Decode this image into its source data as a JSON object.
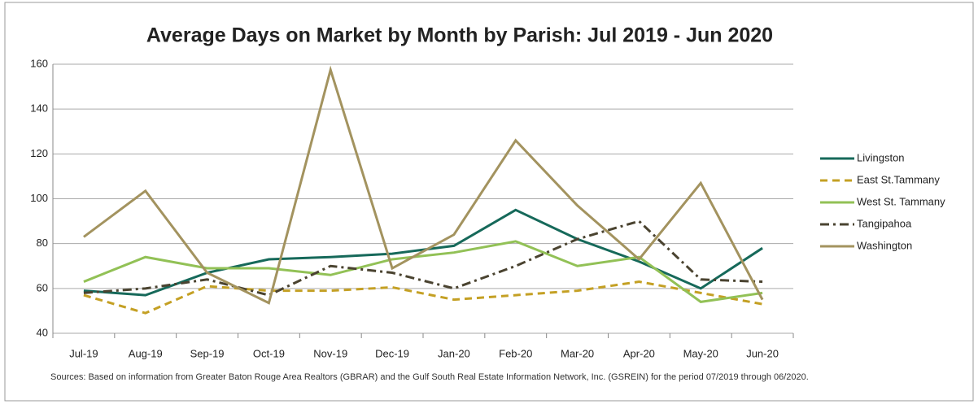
{
  "chart_data": {
    "type": "line",
    "title": "Average Days on Market by Month by Parish:  Jul 2019 - Jun 2020",
    "categories": [
      "Jul-19",
      "Aug-19",
      "Sep-19",
      "Oct-19",
      "Nov-19",
      "Dec-19",
      "Jan-20",
      "Feb-20",
      "Mar-20",
      "Apr-20",
      "May-20",
      "Jun-20"
    ],
    "series": [
      {
        "name": "Livingston",
        "color": "#16695a",
        "dash": "solid",
        "values": [
          59,
          57,
          67,
          73,
          74,
          75.5,
          79,
          95,
          82,
          72,
          60,
          78
        ]
      },
      {
        "name": "East St.Tammany",
        "color": "#c4a024",
        "dash": "dashed",
        "values": [
          57,
          49,
          61,
          59,
          59,
          60.5,
          55,
          57,
          59,
          63,
          58,
          53
        ]
      },
      {
        "name": "West St. Tammany",
        "color": "#92c156",
        "dash": "solid",
        "values": [
          63,
          74,
          69,
          69,
          66,
          73,
          76,
          81,
          70,
          74,
          54,
          58
        ]
      },
      {
        "name": "Tangipahoa",
        "color": "#4a4330",
        "dash": "dashdot",
        "values": [
          58,
          60,
          64,
          57,
          70,
          67,
          60,
          70,
          82,
          90,
          64,
          63
        ]
      },
      {
        "name": "Washington",
        "color": "#a3935f",
        "dash": "solid",
        "values": [
          83,
          103.5,
          67,
          53.5,
          157.5,
          69,
          84,
          126,
          97,
          73,
          107,
          55
        ]
      }
    ],
    "ylim": [
      40,
      160
    ],
    "yticks": [
      40,
      60,
      80,
      100,
      120,
      140,
      160
    ],
    "grid": true,
    "legend": "right",
    "source": "Sources: Based on information from Greater Baton Rouge Area Realtors (GBRAR) and the Gulf South Real Estate Information Network, Inc. (GSREIN) for the period 07/2019 through 06/2020."
  }
}
